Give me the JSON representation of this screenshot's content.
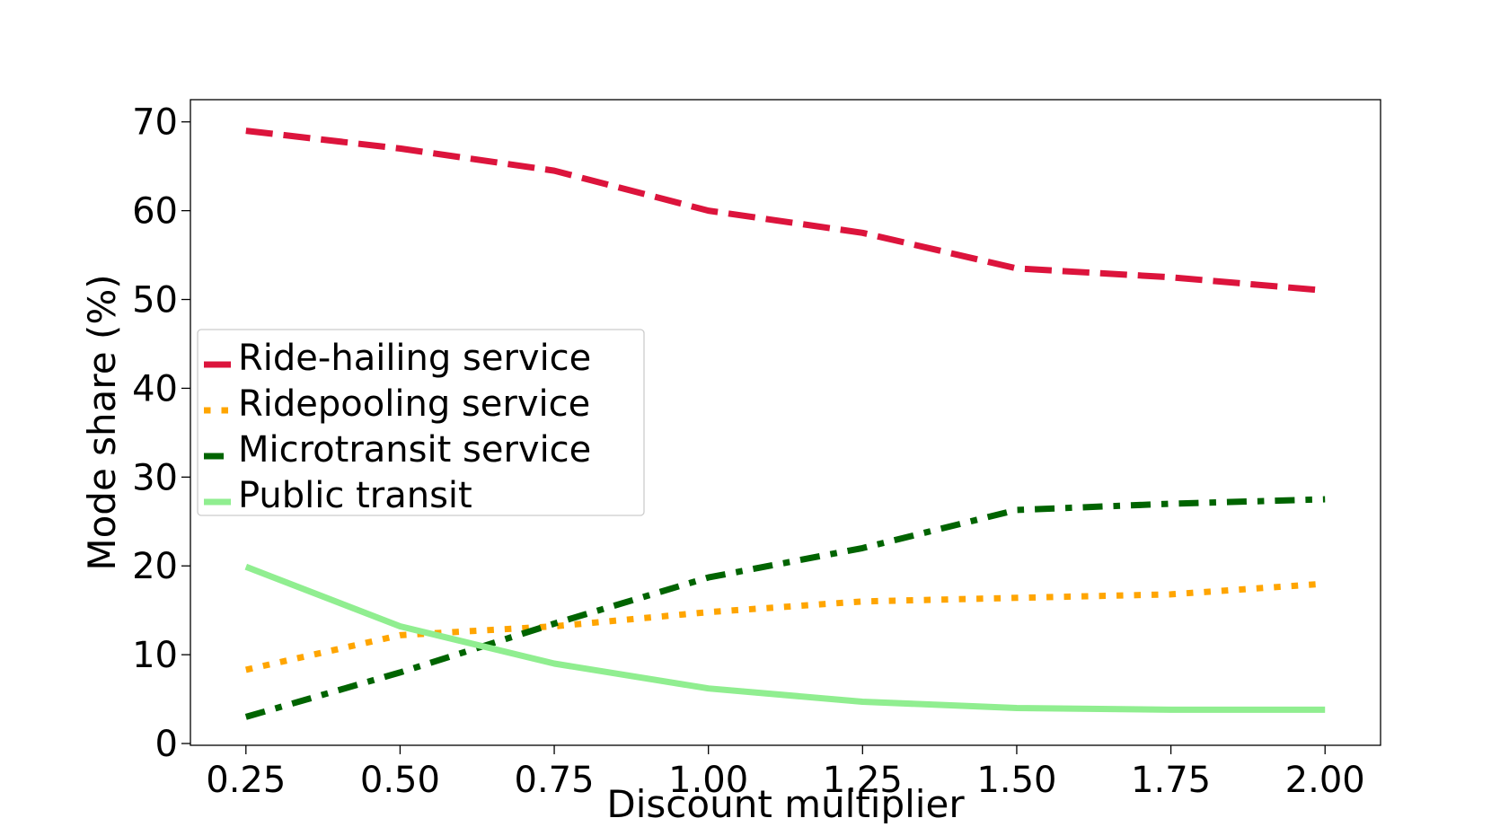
{
  "chart_data": {
    "type": "line",
    "title": "",
    "xlabel": "Discount multiplier",
    "ylabel": "Mode share (%)",
    "x": [
      0.25,
      0.5,
      0.75,
      1.0,
      1.25,
      1.5,
      1.75,
      2.0
    ],
    "x_tick_labels": [
      "0.25",
      "0.50",
      "0.75",
      "1.00",
      "1.25",
      "1.50",
      "1.75",
      "2.00"
    ],
    "xlim": [
      0.16,
      2.09
    ],
    "y_ticks": [
      0,
      10,
      20,
      30,
      40,
      50,
      60,
      70
    ],
    "y_tick_labels": [
      "0",
      "10",
      "20",
      "30",
      "40",
      "50",
      "60",
      "70"
    ],
    "ylim": [
      -0.2,
      72.5
    ],
    "grid": false,
    "legend_position": "center-left",
    "series": [
      {
        "name": "Ride-hailing service",
        "color": "#dc143c",
        "style": "dashed",
        "values": [
          69.0,
          67.0,
          64.5,
          60.0,
          57.5,
          53.5,
          52.5,
          51.0
        ]
      },
      {
        "name": "Ridepooling service",
        "color": "#ffa500",
        "style": "dotted",
        "values": [
          8.3,
          12.2,
          13.2,
          14.8,
          16.0,
          16.4,
          16.8,
          18.0
        ]
      },
      {
        "name": "Microtransit service",
        "color": "#006400",
        "style": "dashdot",
        "values": [
          3.0,
          8.0,
          13.5,
          18.7,
          22.0,
          26.3,
          27.0,
          27.5
        ]
      },
      {
        "name": "Public transit",
        "color": "#90ee90",
        "style": "solid",
        "values": [
          19.9,
          13.2,
          9.0,
          6.2,
          4.7,
          4.0,
          3.8,
          3.8
        ]
      }
    ]
  }
}
